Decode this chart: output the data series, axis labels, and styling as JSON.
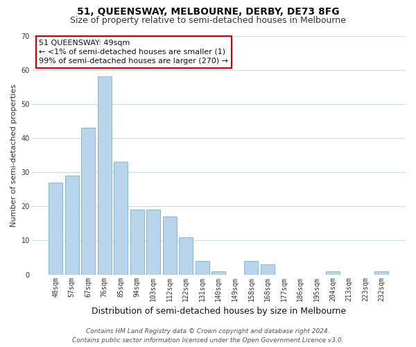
{
  "title": "51, QUEENSWAY, MELBOURNE, DERBY, DE73 8FG",
  "subtitle": "Size of property relative to semi-detached houses in Melbourne",
  "xlabel": "Distribution of semi-detached houses by size in Melbourne",
  "ylabel": "Number of semi-detached properties",
  "bar_labels": [
    "48sqm",
    "57sqm",
    "67sqm",
    "76sqm",
    "85sqm",
    "94sqm",
    "103sqm",
    "112sqm",
    "122sqm",
    "131sqm",
    "140sqm",
    "149sqm",
    "158sqm",
    "168sqm",
    "177sqm",
    "186sqm",
    "195sqm",
    "204sqm",
    "213sqm",
    "223sqm",
    "232sqm"
  ],
  "bar_values": [
    27,
    29,
    43,
    58,
    33,
    19,
    19,
    17,
    11,
    4,
    1,
    0,
    4,
    3,
    0,
    0,
    0,
    1,
    0,
    0,
    1
  ],
  "bar_color": "#b8d4ea",
  "bar_edge_color": "#7aafc8",
  "ylim": [
    0,
    70
  ],
  "yticks": [
    0,
    10,
    20,
    30,
    40,
    50,
    60,
    70
  ],
  "annotation_title": "51 QUEENSWAY: 49sqm",
  "annotation_line1": "← <1% of semi-detached houses are smaller (1)",
  "annotation_line2": "99% of semi-detached houses are larger (270) →",
  "annotation_box_color": "#ffffff",
  "annotation_box_edge": "#cc0000",
  "footer_line1": "Contains HM Land Registry data © Crown copyright and database right 2024.",
  "footer_line2": "Contains public sector information licensed under the Open Government Licence v3.0.",
  "background_color": "#ffffff",
  "grid_color": "#c8dde8",
  "title_fontsize": 10,
  "subtitle_fontsize": 9,
  "ylabel_fontsize": 8,
  "xlabel_fontsize": 9,
  "annotation_fontsize": 8,
  "tick_fontsize": 7,
  "footer_fontsize": 6.5
}
